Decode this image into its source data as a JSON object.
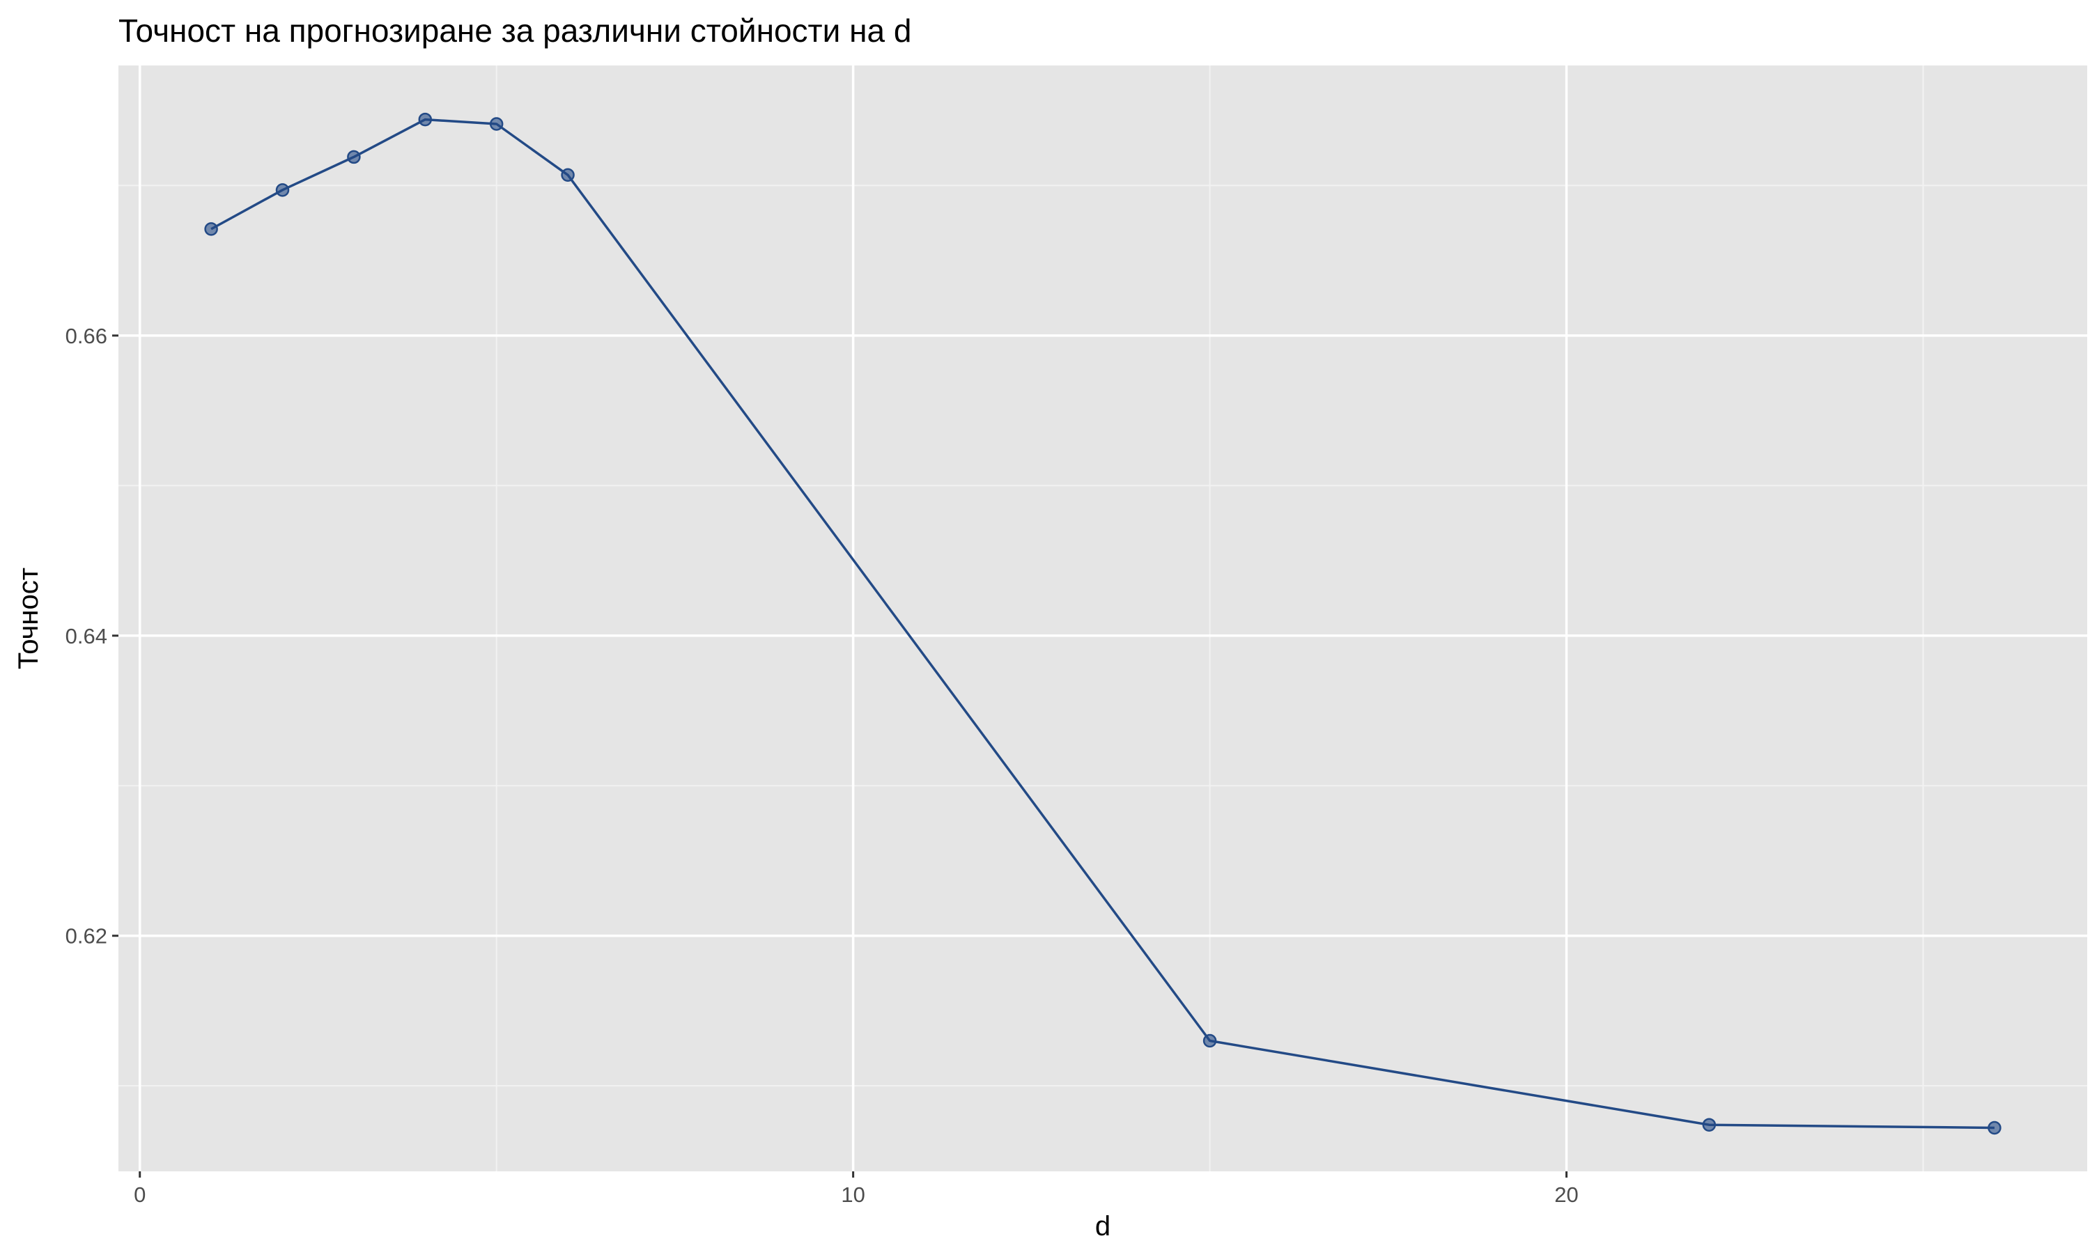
{
  "chart_data": {
    "type": "line",
    "title": "Точност на прогнозиране за различни стойности на d",
    "xlabel": "d",
    "ylabel": "Точност",
    "xlim": [
      -0.3,
      27.3
    ],
    "ylim": [
      0.6043,
      0.678
    ],
    "x_ticks": [
      0,
      10,
      20
    ],
    "x_tick_labels": [
      "0",
      "10",
      "20"
    ],
    "x_minor_ticks": [
      5,
      15,
      25
    ],
    "y_ticks": [
      0.62,
      0.64,
      0.66
    ],
    "y_tick_labels": [
      "0.62",
      "0.64",
      "0.66"
    ],
    "y_minor_ticks": [
      0.61,
      0.63,
      0.65,
      0.67
    ],
    "grid": true,
    "panel_background": "#e5e5e5",
    "grid_color": "#ffffff",
    "series": [
      {
        "color": "#234a86",
        "points": [
          {
            "x": 1,
            "y": 0.6671
          },
          {
            "x": 2,
            "y": 0.6697
          },
          {
            "x": 3,
            "y": 0.6719
          },
          {
            "x": 4,
            "y": 0.6744
          },
          {
            "x": 5,
            "y": 0.6741
          },
          {
            "x": 6,
            "y": 0.6707
          },
          {
            "x": 15,
            "y": 0.613
          },
          {
            "x": 22,
            "y": 0.6074
          },
          {
            "x": 26,
            "y": 0.6072
          }
        ]
      }
    ]
  }
}
